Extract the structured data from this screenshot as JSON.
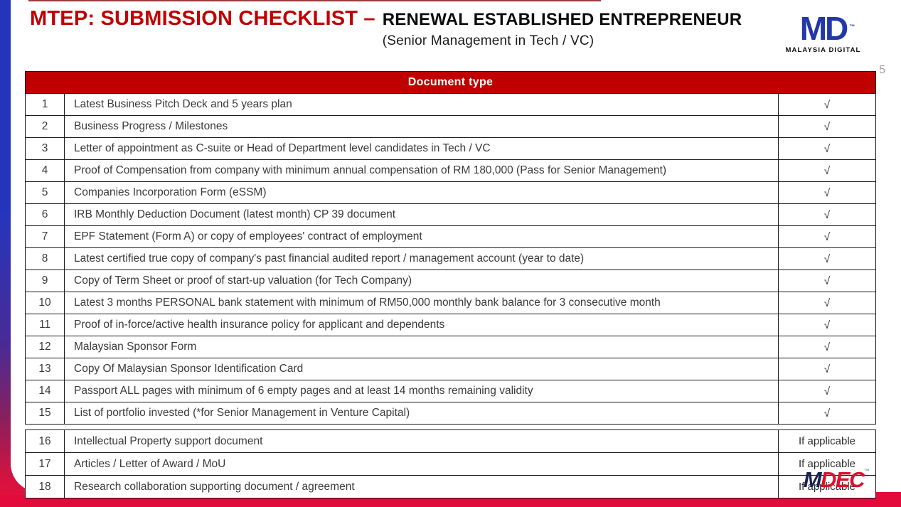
{
  "page": {
    "title_red": "MTEP: SUBMISSION CHECKLIST –",
    "title_black": "RENEWAL ESTABLISHED ENTREPRENEUR",
    "subtitle": "(Senior Management in Tech / VC)",
    "page_number": "5"
  },
  "logos": {
    "malaysia_digital": {
      "mark": "MD",
      "tm": "™",
      "caption": "MALAYSIA DIGITAL"
    },
    "mdec": {
      "m": "M",
      "dec": "DEC",
      "tm": "™"
    }
  },
  "colors": {
    "header_red": "#C00000",
    "title_red": "#C00000",
    "left_bar_blue": "#2535BB",
    "left_bar_purple": "#86205F",
    "bottom_band_red": "#E30A3C",
    "md_logo_blue": "#2337A8",
    "mdec_navy": "#1A2150",
    "mdec_red": "#D7142C",
    "table_border": "#1a1a1a",
    "body_text": "#3a3a3a"
  },
  "table": {
    "header": "Document type",
    "check_symbol": "√",
    "sections": [
      {
        "name": "required",
        "rows": [
          {
            "no": "1",
            "doc": "Latest Business Pitch Deck and 5 years plan",
            "status": "√"
          },
          {
            "no": "2",
            "doc": "Business Progress / Milestones",
            "status": "√"
          },
          {
            "no": "3",
            "doc": "Letter of appointment as C-suite or Head of Department level candidates in Tech / VC",
            "status": "√"
          },
          {
            "no": "4",
            "doc": "Proof of Compensation from company with minimum annual compensation of RM 180,000 (Pass for Senior Management)",
            "status": "√"
          },
          {
            "no": "5",
            "doc": "Companies Incorporation Form (eSSM)",
            "status": "√"
          },
          {
            "no": "6",
            "doc": "IRB Monthly Deduction Document (latest month) CP 39 document",
            "status": "√"
          },
          {
            "no": "7",
            "doc": "EPF Statement (Form A) or copy of employees' contract of employment",
            "status": "√"
          },
          {
            "no": "8",
            "doc": "Latest certified true copy of company's past financial audited report / management account (year to date)",
            "status": "√"
          },
          {
            "no": "9",
            "doc": "Copy of Term Sheet or proof of start-up valuation (for Tech Company)",
            "status": "√"
          },
          {
            "no": "10",
            "doc": "Latest 3 months PERSONAL bank statement with minimum of RM50,000 monthly bank balance for 3 consecutive month",
            "status": "√"
          },
          {
            "no": "11",
            "doc": "Proof of in-force/active health insurance policy for applicant and dependents",
            "status": "√"
          },
          {
            "no": "12",
            "doc": "Malaysian Sponsor Form",
            "status": "√"
          },
          {
            "no": "13",
            "doc": "Copy Of Malaysian Sponsor Identification Card",
            "status": "√"
          },
          {
            "no": "14",
            "doc": "Passport ALL pages with minimum of 6 empty pages and at least 14 months remaining validity",
            "status": "√"
          },
          {
            "no": "15",
            "doc": "List of portfolio invested (*for Senior Management in Venture Capital)",
            "status": "√"
          }
        ]
      },
      {
        "name": "conditional",
        "rows": [
          {
            "no": "16",
            "doc": "Intellectual Property support document",
            "status": "If applicable"
          },
          {
            "no": "17",
            "doc": "Articles / Letter of Award / MoU",
            "status": "If applicable"
          },
          {
            "no": "18",
            "doc": "Research collaboration supporting document / agreement",
            "status": "If applicable"
          }
        ]
      }
    ]
  }
}
